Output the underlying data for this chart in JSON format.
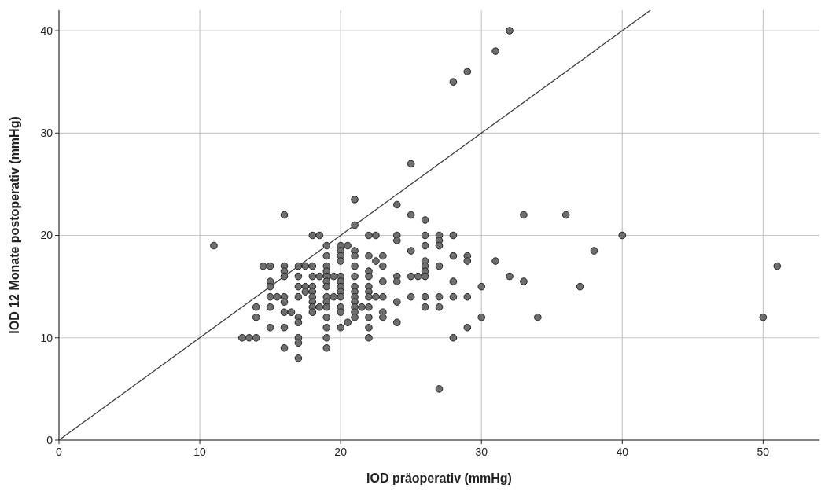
{
  "chart_data": {
    "type": "scatter",
    "xlabel": "IOD präoperativ (mmHg)",
    "ylabel": "IOD 12 Monate postoperativ (mmHg)",
    "xlim": [
      0,
      54
    ],
    "ylim": [
      0,
      42
    ],
    "xticks": [
      0,
      10,
      20,
      30,
      40,
      50
    ],
    "yticks": [
      0,
      10,
      20,
      30,
      40
    ],
    "grid": true,
    "marker": "circle",
    "series": [
      {
        "color": "#6e6e6e",
        "x": [
          11,
          16,
          21,
          21,
          18,
          18.5,
          22,
          22.5,
          19,
          20,
          20.5,
          20,
          20,
          20,
          21,
          21,
          19,
          22,
          22.5,
          14.5,
          15,
          16,
          17,
          17.5,
          18,
          19,
          21,
          22,
          16,
          19,
          16,
          17,
          18,
          18.5,
          19,
          19.5,
          20,
          21,
          22,
          15,
          19,
          20,
          15,
          17,
          17.5,
          18,
          19,
          20,
          21,
          22,
          17.5,
          18,
          20,
          21,
          22,
          15,
          15.5,
          16,
          17,
          18,
          19,
          19.5,
          20,
          21,
          22,
          22.5,
          16,
          18,
          19,
          21,
          14,
          15,
          18,
          18.5,
          19,
          20,
          21,
          21.5,
          22,
          16,
          16.5,
          18,
          20,
          21,
          14,
          17,
          19,
          21,
          22,
          17,
          20.5,
          15,
          16,
          19,
          20,
          22,
          13,
          13.5,
          14,
          17,
          19,
          22,
          17,
          16,
          19,
          17,
          24,
          25,
          26,
          33,
          24,
          24,
          26,
          27,
          27,
          27,
          28,
          26,
          25,
          23,
          28,
          29,
          29,
          23,
          26,
          26,
          26,
          26,
          27,
          31,
          24,
          24,
          25,
          25.5,
          32,
          23,
          28,
          33,
          30,
          23,
          25,
          26,
          27,
          28,
          29,
          24,
          26,
          27,
          23,
          23,
          30,
          24,
          29,
          28,
          27,
          28,
          29,
          31,
          32,
          25,
          36,
          40,
          38,
          37,
          34,
          50,
          51
        ],
        "values": [
          19,
          22,
          23.5,
          21,
          20,
          20,
          20,
          20,
          19,
          19,
          19,
          18.5,
          18,
          17.5,
          18.5,
          18,
          18,
          18,
          17.5,
          17,
          17,
          17,
          17,
          17,
          17,
          17,
          17,
          16.5,
          16.5,
          16.5,
          16,
          16,
          16,
          16,
          16,
          16,
          16,
          16,
          16,
          15.5,
          15.5,
          15.5,
          15,
          15,
          15,
          15,
          15,
          15,
          15,
          15,
          14.5,
          14.5,
          14.5,
          14.5,
          14.5,
          14,
          14,
          14,
          14,
          14,
          14,
          14,
          14,
          14,
          14,
          14,
          13.5,
          13.5,
          13.5,
          13.5,
          13,
          13,
          13,
          13,
          13,
          13,
          13,
          13,
          13,
          12.5,
          12.5,
          12.5,
          12.5,
          12.5,
          12,
          12,
          12,
          12,
          12,
          11.5,
          11.5,
          11,
          11,
          11,
          11,
          11,
          10,
          10,
          10,
          10,
          10,
          10,
          9.5,
          9,
          9,
          8,
          23,
          22,
          21.5,
          22,
          20,
          19.5,
          20,
          20,
          19.5,
          19,
          20,
          19,
          18.5,
          18,
          18,
          18,
          17.5,
          17,
          17.5,
          17,
          16.5,
          16,
          17,
          17.5,
          16,
          15.5,
          16,
          16,
          16,
          15.5,
          15.5,
          15.5,
          15,
          14,
          14,
          14,
          14,
          14,
          14,
          13.5,
          13,
          13,
          12.5,
          12,
          12,
          11.5,
          11,
          10,
          5,
          35,
          36,
          38,
          40,
          27,
          22,
          20,
          18.5,
          15,
          12,
          12,
          17
        ]
      },
      {
        "type": "line",
        "color": "#333333",
        "marker": "none",
        "x": [
          0,
          42
        ],
        "values": [
          0,
          42
        ]
      }
    ]
  }
}
